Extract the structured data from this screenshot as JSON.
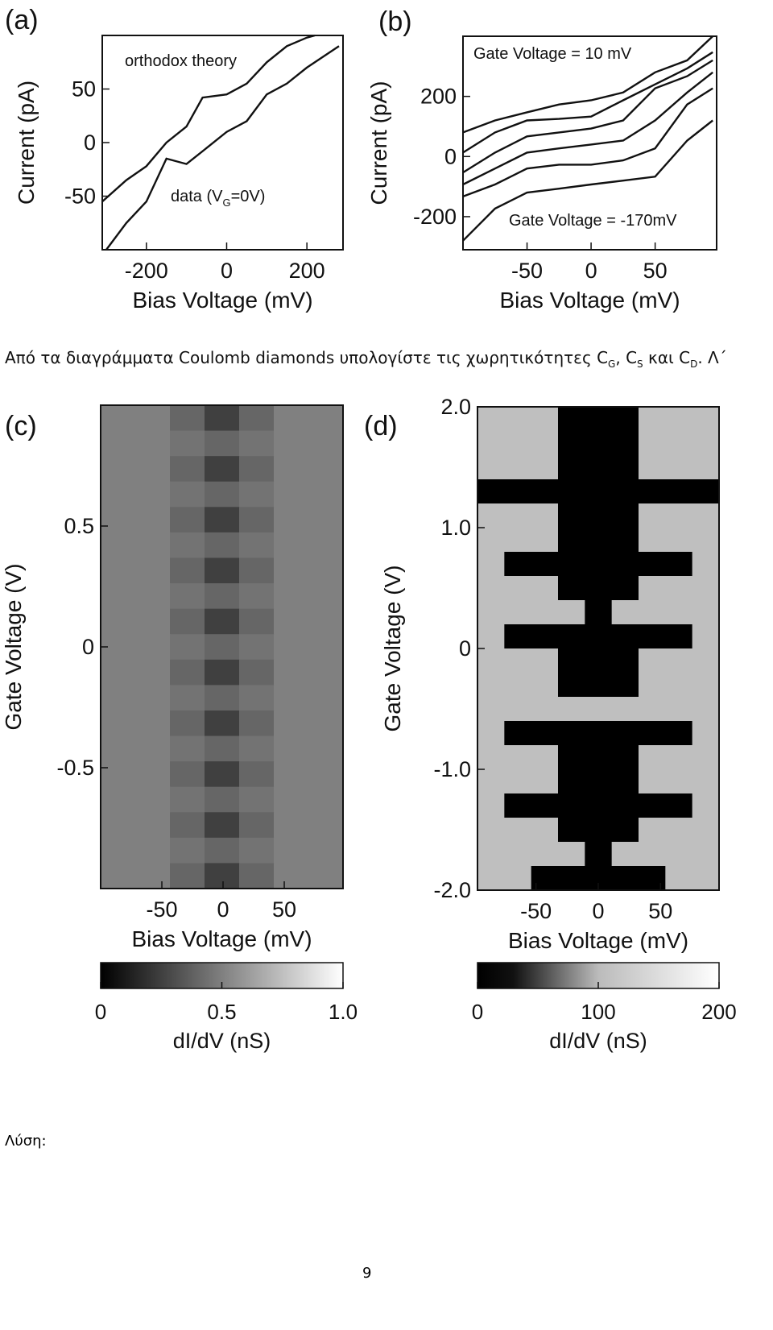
{
  "chart_data": [
    {
      "type": "line",
      "panel_label": "(a)",
      "xlabel": "Bias Voltage (mV)",
      "ylabel": "Current (pA)",
      "xlim": [
        -310,
        290
      ],
      "ylim": [
        -100,
        100
      ],
      "xticks": [
        -200,
        0,
        200
      ],
      "yticks": [
        -50,
        0,
        50
      ],
      "annotations": [
        {
          "text": "orthodox theory"
        },
        {
          "text": "data (V",
          "sub": "G",
          "after": "=0V)"
        }
      ],
      "series": [
        {
          "x": [
            -310,
            -250,
            -200,
            -150,
            -100,
            -60,
            0,
            50,
            100,
            150,
            200,
            220
          ],
          "values": [
            -55,
            -35,
            -22,
            0,
            15,
            42,
            45,
            55,
            75,
            90,
            98,
            100
          ]
        },
        {
          "x": [
            -300,
            -250,
            -200,
            -150,
            -100,
            -50,
            0,
            50,
            100,
            150,
            200,
            280
          ],
          "values": [
            -100,
            -75,
            -55,
            -15,
            -20,
            -5,
            10,
            20,
            45,
            55,
            70,
            90
          ]
        }
      ]
    },
    {
      "type": "line",
      "panel_label": "(b)",
      "xlabel": "Bias Voltage (mV)",
      "ylabel": "Current (pA)",
      "xlim": [
        -100,
        98
      ],
      "ylim": [
        -310,
        400
      ],
      "xticks": [
        -50,
        0,
        50
      ],
      "yticks": [
        -200,
        0,
        200
      ],
      "annotations": [
        {
          "text": "Gate Voltage = 10 mV"
        },
        {
          "text": "Gate Voltage = -170mV"
        }
      ],
      "series": [
        {
          "x": [
            -100,
            -75,
            -50,
            -25,
            0,
            25,
            50,
            75,
            95
          ],
          "values": [
            80,
            120,
            147,
            173,
            187,
            213,
            280,
            320,
            400
          ]
        },
        {
          "x": [
            -100,
            -75,
            -50,
            -25,
            0,
            25,
            50,
            75,
            95
          ],
          "values": [
            13,
            80,
            120,
            125,
            133,
            187,
            240,
            293,
            347
          ]
        },
        {
          "x": [
            -100,
            -75,
            -50,
            -25,
            0,
            25,
            50,
            75,
            95
          ],
          "values": [
            -53,
            13,
            67,
            80,
            93,
            120,
            227,
            267,
            320
          ]
        },
        {
          "x": [
            -100,
            -75,
            -50,
            -25,
            0,
            25,
            50,
            75,
            95
          ],
          "values": [
            -93,
            -40,
            13,
            27,
            40,
            53,
            120,
            213,
            280
          ]
        },
        {
          "x": [
            -100,
            -75,
            -50,
            -25,
            0,
            25,
            50,
            75,
            95
          ],
          "values": [
            -133,
            -93,
            -40,
            -27,
            -27,
            -13,
            27,
            173,
            227
          ]
        },
        {
          "x": [
            -100,
            -75,
            -50,
            -25,
            0,
            25,
            50,
            75,
            95
          ],
          "values": [
            -280,
            -173,
            -120,
            -107,
            -93,
            -80,
            -67,
            53,
            120
          ]
        }
      ]
    },
    {
      "type": "heatmap",
      "panel_label": "(c)",
      "xlabel": "Bias Voltage (mV)",
      "ylabel": "Gate Voltage (V)",
      "xlim": [
        -100,
        98
      ],
      "ylim": [
        -1,
        1
      ],
      "xticks": [
        -50,
        0,
        50
      ],
      "yticks": [
        -0.5,
        0,
        0.5
      ],
      "x": [
        -75,
        -50,
        -25,
        0,
        25,
        50,
        75
      ],
      "y": [
        0.9,
        0.8,
        0.7,
        0.6,
        0.5,
        0.4,
        0.3,
        0.2,
        0.1,
        0,
        -0.1,
        -0.2,
        -0.3,
        -0.4,
        -0.5,
        -0.6,
        -0.7,
        -0.8,
        -0.9
      ],
      "values": [
        [
          0.5,
          0.5,
          0.4,
          0.25,
          0.4,
          0.5,
          0.5
        ],
        [
          0.5,
          0.5,
          0.45,
          0.4,
          0.45,
          0.5,
          0.5
        ],
        [
          0.5,
          0.5,
          0.4,
          0.25,
          0.4,
          0.5,
          0.5
        ],
        [
          0.5,
          0.5,
          0.45,
          0.4,
          0.45,
          0.5,
          0.5
        ],
        [
          0.5,
          0.5,
          0.4,
          0.25,
          0.4,
          0.5,
          0.5
        ],
        [
          0.5,
          0.5,
          0.45,
          0.4,
          0.45,
          0.5,
          0.5
        ],
        [
          0.5,
          0.5,
          0.4,
          0.25,
          0.4,
          0.5,
          0.5
        ],
        [
          0.5,
          0.5,
          0.45,
          0.4,
          0.45,
          0.5,
          0.5
        ],
        [
          0.5,
          0.5,
          0.4,
          0.25,
          0.4,
          0.5,
          0.5
        ],
        [
          0.5,
          0.5,
          0.45,
          0.4,
          0.45,
          0.5,
          0.5
        ],
        [
          0.5,
          0.5,
          0.4,
          0.25,
          0.4,
          0.5,
          0.5
        ],
        [
          0.5,
          0.5,
          0.45,
          0.4,
          0.45,
          0.5,
          0.5
        ],
        [
          0.5,
          0.5,
          0.4,
          0.25,
          0.4,
          0.5,
          0.5
        ],
        [
          0.5,
          0.5,
          0.45,
          0.4,
          0.45,
          0.5,
          0.5
        ],
        [
          0.5,
          0.5,
          0.4,
          0.25,
          0.4,
          0.5,
          0.5
        ],
        [
          0.5,
          0.5,
          0.45,
          0.4,
          0.45,
          0.5,
          0.5
        ],
        [
          0.5,
          0.5,
          0.4,
          0.25,
          0.4,
          0.5,
          0.5
        ],
        [
          0.5,
          0.5,
          0.45,
          0.4,
          0.45,
          0.5,
          0.5
        ],
        [
          0.5,
          0.5,
          0.4,
          0.25,
          0.4,
          0.5,
          0.5
        ]
      ],
      "colorbar": {
        "label": "dI/dV (nS)",
        "lim": [
          0,
          1
        ],
        "ticks": [
          0,
          0.5,
          {
            "value": 1,
            "label": "1.0"
          }
        ]
      }
    },
    {
      "type": "heatmap",
      "panel_label": "(d)",
      "xlabel": "Bias Voltage (mV)",
      "ylabel": "Gate Voltage (V)",
      "xlim": [
        -97,
        97
      ],
      "ylim": [
        -2,
        2
      ],
      "xticks": [
        -50,
        0,
        50
      ],
      "yticks": [
        {
          "value": -2,
          "label": "-2.0"
        },
        {
          "value": -1,
          "label": "-1.0"
        },
        0,
        {
          "value": 1,
          "label": "1.0"
        },
        {
          "value": 2,
          "label": "2.0"
        }
      ],
      "x": [
        -80,
        -60,
        -40,
        -20,
        0,
        20,
        40,
        60,
        80
      ],
      "y": [
        1.9,
        1.7,
        1.5,
        1.3,
        1.1,
        0.9,
        0.7,
        0.5,
        0.3,
        0.1,
        -0.1,
        -0.3,
        -0.5,
        -0.7,
        -0.9,
        -1.1,
        -1.3,
        -1.5,
        -1.7,
        -1.9
      ],
      "values": [
        [
          150,
          150,
          150,
          0,
          0,
          0,
          150,
          150,
          150
        ],
        [
          150,
          150,
          150,
          0,
          0,
          0,
          150,
          150,
          150
        ],
        [
          150,
          150,
          150,
          0,
          0,
          0,
          150,
          150,
          150
        ],
        [
          0,
          0,
          0,
          0,
          0,
          0,
          0,
          0,
          0
        ],
        [
          150,
          150,
          150,
          0,
          0,
          0,
          150,
          150,
          150
        ],
        [
          150,
          150,
          150,
          0,
          0,
          0,
          150,
          150,
          150
        ],
        [
          150,
          0,
          0,
          0,
          0,
          0,
          0,
          0,
          150
        ],
        [
          150,
          150,
          150,
          0,
          0,
          0,
          150,
          150,
          150
        ],
        [
          150,
          150,
          150,
          150,
          0,
          150,
          150,
          150,
          150
        ],
        [
          150,
          0,
          0,
          0,
          0,
          0,
          0,
          0,
          150
        ],
        [
          150,
          150,
          150,
          0,
          0,
          0,
          150,
          150,
          150
        ],
        [
          150,
          150,
          150,
          0,
          0,
          0,
          150,
          150,
          150
        ],
        [
          150,
          150,
          150,
          150,
          150,
          150,
          150,
          150,
          150
        ],
        [
          150,
          0,
          0,
          0,
          0,
          0,
          0,
          0,
          150
        ],
        [
          150,
          150,
          150,
          0,
          0,
          0,
          150,
          150,
          150
        ],
        [
          150,
          150,
          150,
          0,
          0,
          0,
          150,
          150,
          150
        ],
        [
          150,
          0,
          0,
          0,
          0,
          0,
          0,
          0,
          150
        ],
        [
          150,
          150,
          150,
          0,
          0,
          0,
          150,
          150,
          150
        ],
        [
          150,
          150,
          150,
          150,
          0,
          150,
          150,
          150,
          150
        ],
        [
          150,
          150,
          0,
          0,
          0,
          0,
          0,
          150,
          150
        ]
      ],
      "colorbar": {
        "label": "dI/dV (nS)",
        "lim": [
          0,
          200
        ],
        "ticks": [
          0,
          100,
          200
        ]
      }
    }
  ],
  "question": {
    "text": "Από τα διαγράμματα Coulomb diamonds υπολογίστε τις χωρητικότητες C",
    "sub1": "G",
    "mid1": ", C",
    "sub2": "S",
    "mid2": " και C",
    "sub3": "D",
    "end": ". Λ΄"
  },
  "solution_label": "Λύση:",
  "page_number": "9"
}
